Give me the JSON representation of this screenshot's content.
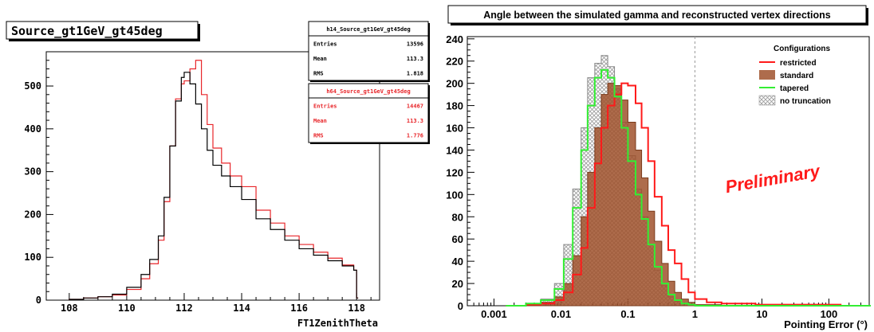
{
  "chart_data": [
    {
      "type": "line",
      "title": "Source_gt1GeV_gt45deg",
      "xlabel": "FT1ZenithTheta",
      "ylabel": "",
      "xlim": [
        107.2,
        118.8
      ],
      "ylim": [
        0,
        580
      ],
      "xticks": [
        "108",
        "110",
        "112",
        "114",
        "116",
        "118"
      ],
      "yticks": [
        "0",
        "100",
        "200",
        "300",
        "400",
        "500"
      ],
      "stats_boxes": [
        {
          "name": "h14_Source_gt1GeV_gt45deg",
          "color": "#000000",
          "rows": [
            {
              "label": "Entries",
              "value": "13596"
            },
            {
              "label": "Mean",
              "value": "113.3"
            },
            {
              "label": "RMS",
              "value": "1.818"
            }
          ]
        },
        {
          "name": "h64_Source_gt1GeV_gt45deg",
          "color": "#e8262a",
          "rows": [
            {
              "label": "Entries",
              "value": "14467"
            },
            {
              "label": "Mean",
              "value": "113.3"
            },
            {
              "label": "RMS",
              "value": "1.776"
            }
          ]
        }
      ],
      "series": [
        {
          "color": "#000000",
          "x": [
            108.0,
            108.5,
            109.0,
            109.5,
            110.0,
            110.5,
            110.8,
            111.1,
            111.3,
            111.5,
            111.7,
            111.9,
            112.0,
            112.2,
            112.4,
            112.6,
            112.8,
            113.0,
            113.3,
            113.6,
            114.0,
            114.5,
            115.0,
            115.5,
            116.0,
            116.5,
            117.0,
            117.5,
            117.9,
            118.0
          ],
          "y": [
            2,
            5,
            8,
            14,
            30,
            60,
            95,
            150,
            240,
            360,
            465,
            520,
            532,
            505,
            458,
            400,
            350,
            315,
            290,
            265,
            235,
            190,
            165,
            140,
            120,
            105,
            92,
            80,
            70,
            5
          ]
        },
        {
          "color": "#e8262a",
          "x": [
            108.0,
            108.5,
            109.0,
            109.5,
            110.0,
            110.5,
            110.8,
            111.1,
            111.3,
            111.5,
            111.7,
            111.9,
            112.0,
            112.2,
            112.4,
            112.6,
            112.8,
            113.0,
            113.3,
            113.6,
            114.0,
            114.5,
            115.0,
            115.5,
            116.0,
            116.5,
            117.0,
            117.5,
            117.9,
            118.0
          ],
          "y": [
            2,
            5,
            8,
            12,
            25,
            50,
            85,
            140,
            230,
            360,
            470,
            505,
            512,
            540,
            560,
            480,
            410,
            355,
            320,
            290,
            265,
            210,
            180,
            150,
            130,
            112,
            98,
            82,
            70,
            5
          ]
        }
      ]
    },
    {
      "type": "area",
      "title": "Angle between the simulated gamma and reconstructed vertex directions",
      "xlabel": "Pointing Error (°)",
      "ylabel": "",
      "x_scale": "log",
      "xlim": [
        0.0004,
        400
      ],
      "ylim": [
        0,
        242
      ],
      "xticks": [
        "0.001",
        "0.01",
        "0.1",
        "1",
        "10",
        "100"
      ],
      "yticks": [
        "0",
        "20",
        "40",
        "60",
        "80",
        "100",
        "120",
        "140",
        "160",
        "180",
        "200",
        "220",
        "240"
      ],
      "legend_title": "Configurations",
      "annotation": "Preliminary",
      "dashed_line_x": 1.0,
      "series": [
        {
          "name": "restricted",
          "style": "line",
          "color": "#ff1a1a",
          "x": [
            0.0015,
            0.003,
            0.005,
            0.008,
            0.011,
            0.015,
            0.02,
            0.025,
            0.032,
            0.04,
            0.05,
            0.063,
            0.08,
            0.1,
            0.13,
            0.16,
            0.2,
            0.25,
            0.32,
            0.4,
            0.5,
            0.63,
            0.8,
            1.0,
            1.5,
            2.5,
            4,
            8,
            20,
            50,
            150,
            400
          ],
          "y": [
            0,
            1,
            2,
            5,
            12,
            28,
            52,
            88,
            128,
            160,
            180,
            190,
            200,
            198,
            182,
            160,
            130,
            98,
            72,
            50,
            38,
            24,
            12,
            6,
            3,
            2,
            2,
            1,
            1,
            1,
            0,
            0
          ]
        },
        {
          "name": "standard",
          "style": "fill",
          "color": "#a0522d",
          "x": [
            0.0015,
            0.003,
            0.005,
            0.008,
            0.011,
            0.015,
            0.02,
            0.025,
            0.032,
            0.04,
            0.05,
            0.063,
            0.08,
            0.1,
            0.13,
            0.16,
            0.2,
            0.25,
            0.32,
            0.4,
            0.5,
            0.63,
            0.8,
            1.0,
            1.5,
            2.5,
            4,
            8,
            20,
            50,
            150,
            400
          ],
          "y": [
            0,
            1,
            3,
            8,
            20,
            45,
            80,
            120,
            160,
            190,
            200,
            198,
            185,
            165,
            140,
            115,
            85,
            58,
            38,
            22,
            12,
            6,
            3,
            1,
            1,
            0,
            0,
            0,
            0,
            0,
            0,
            0
          ]
        },
        {
          "name": "tapered",
          "style": "line",
          "color": "#33ee33",
          "x": [
            0.0015,
            0.003,
            0.005,
            0.008,
            0.011,
            0.015,
            0.02,
            0.025,
            0.032,
            0.04,
            0.05,
            0.063,
            0.08,
            0.1,
            0.13,
            0.16,
            0.2,
            0.25,
            0.32,
            0.4,
            0.5,
            0.63,
            0.8,
            1.0,
            1.5,
            2.5,
            4,
            8,
            20,
            50,
            150,
            400
          ],
          "y": [
            0,
            2,
            5,
            15,
            42,
            88,
            140,
            180,
            205,
            212,
            205,
            188,
            160,
            130,
            100,
            78,
            55,
            35,
            20,
            10,
            5,
            2,
            1,
            0,
            0,
            0,
            0,
            0,
            0,
            0,
            0,
            0
          ]
        },
        {
          "name": "no truncation",
          "style": "hatch",
          "color": "#888888",
          "x": [
            0.0015,
            0.003,
            0.005,
            0.008,
            0.011,
            0.015,
            0.02,
            0.025,
            0.032,
            0.04,
            0.05,
            0.063,
            0.08,
            0.1,
            0.13,
            0.16,
            0.2,
            0.25,
            0.32,
            0.4,
            0.5,
            0.63,
            0.8,
            1.0,
            1.5,
            2.5,
            4,
            8,
            20,
            50,
            150,
            400
          ],
          "y": [
            0,
            2,
            6,
            20,
            55,
            105,
            160,
            205,
            218,
            225,
            215,
            195,
            165,
            135,
            105,
            80,
            55,
            32,
            18,
            8,
            4,
            2,
            1,
            0,
            0,
            0,
            0,
            0,
            0,
            0,
            0,
            0
          ]
        }
      ]
    }
  ]
}
